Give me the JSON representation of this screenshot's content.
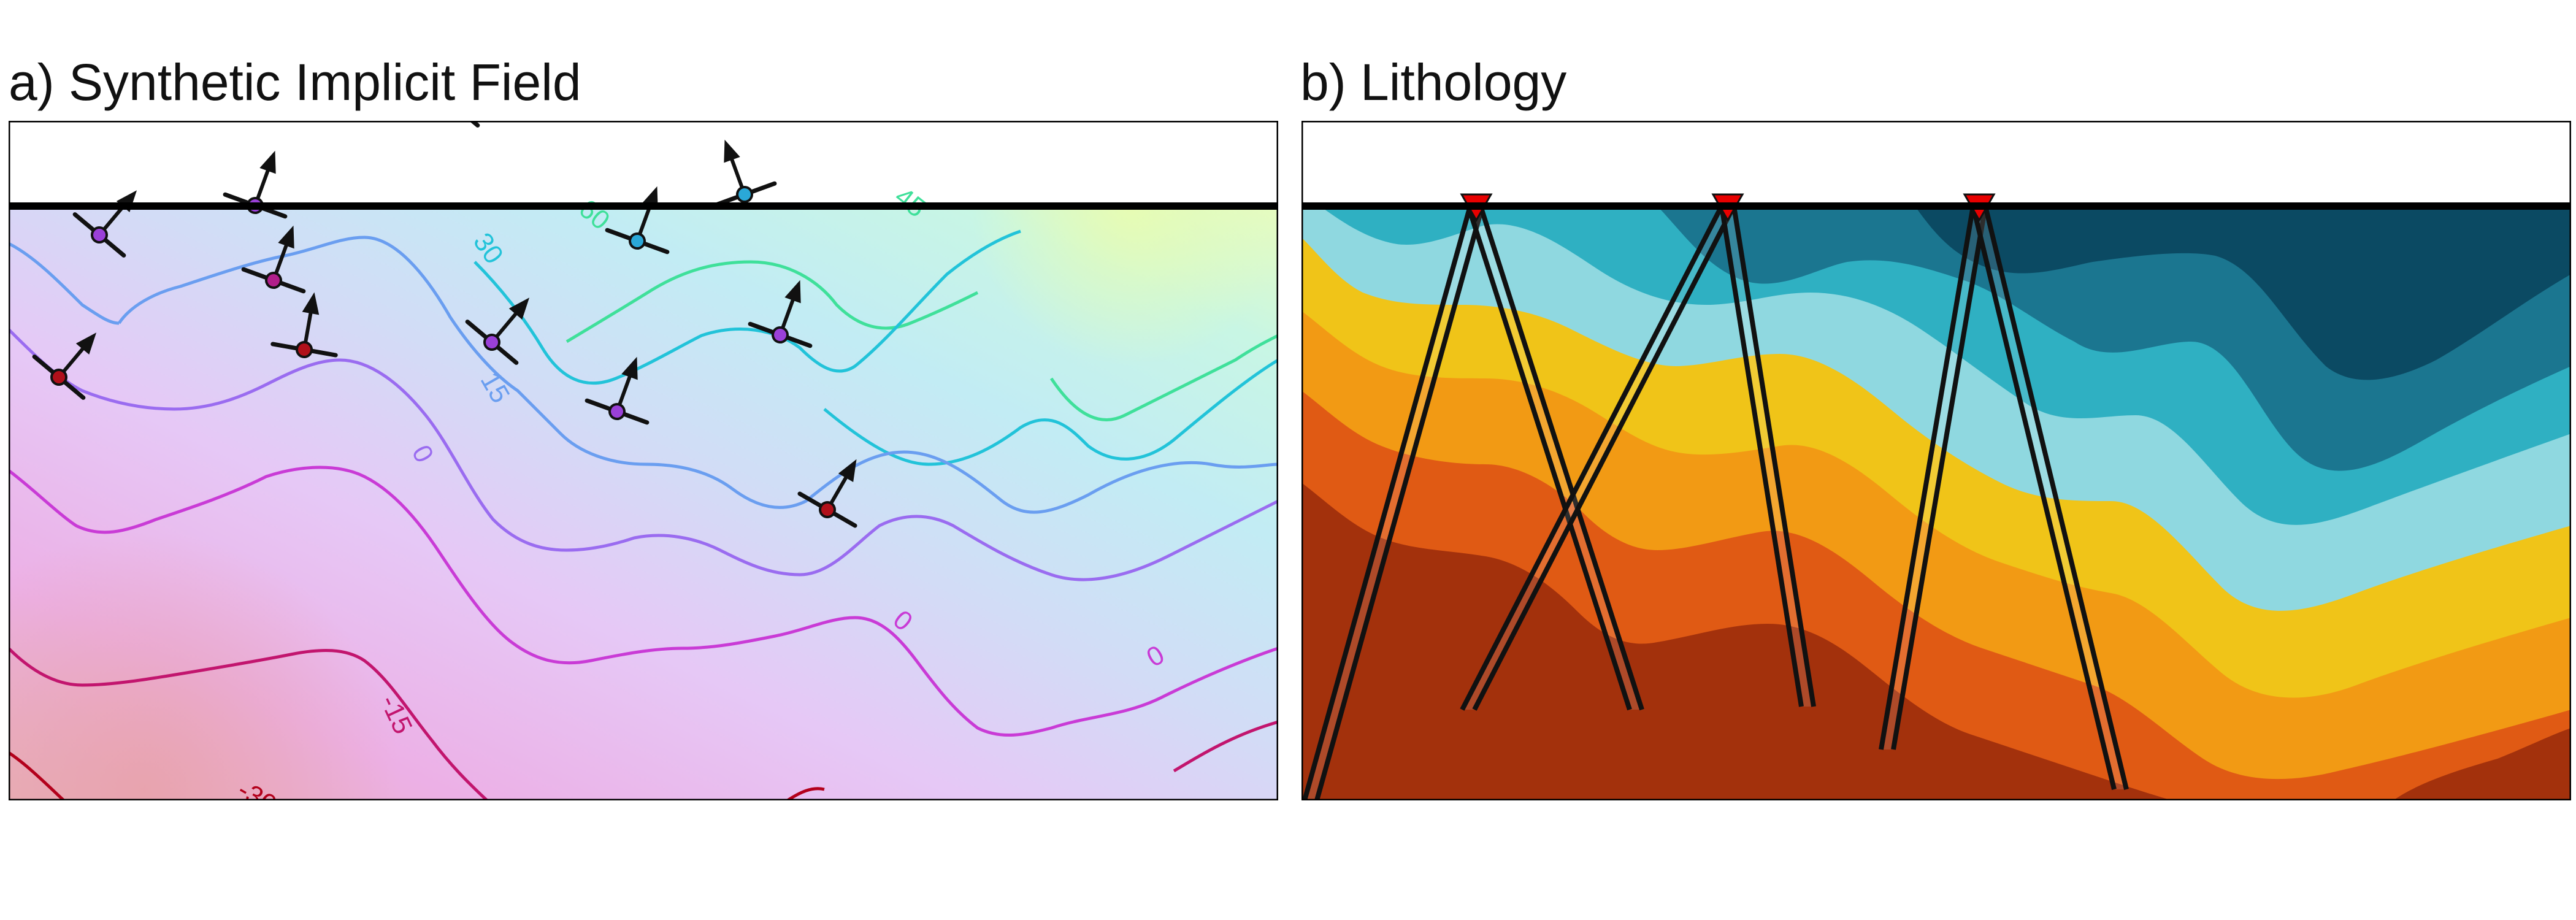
{
  "panels": {
    "a": {
      "title": "a) Synthetic Implicit Field",
      "contour_labels": [
        "-30",
        "-15",
        "0",
        "0",
        "15",
        "30",
        "45",
        "60",
        "60"
      ]
    },
    "b": {
      "title": "b) Lithology"
    }
  },
  "chart_data": [
    {
      "type": "contour",
      "title": "a) Synthetic Implicit Field",
      "colormap": [
        "#b3001b",
        "#c81d7a",
        "#c93bd6",
        "#9a6cf0",
        "#6a9ef0",
        "#22c3d9",
        "#3fe09a",
        "#c8f55a"
      ],
      "levels": [
        -30,
        -15,
        0,
        15,
        30,
        45,
        60
      ],
      "level_colors": {
        "-30": "#b3001b",
        "-15": "#c2156e",
        "0": "#c93bd6",
        "15": "#9a6cf0",
        "30": "#6a9ef0",
        "45": "#22c3d9",
        "60": "#3fe09a"
      },
      "observations": [
        {
          "value_color": "#2aa8d8",
          "gradient": "up"
        },
        {
          "value_color": "#2aa8d8",
          "gradient": "up"
        },
        {
          "value_color": "#2ad0a8",
          "gradient": "up-right"
        },
        {
          "value_color": "#6aa8f0",
          "gradient": "up-right"
        },
        {
          "value_color": "#2aa8d8",
          "gradient": "up-right"
        },
        {
          "value_color": "#a8f040",
          "gradient": "up"
        },
        {
          "value_color": "#a8f040",
          "gradient": "up"
        },
        {
          "value_color": "#2aa8d8",
          "gradient": "up"
        },
        {
          "value_color": "#2aa8d8",
          "gradient": "up"
        },
        {
          "value_color": "#9a40d8",
          "gradient": "up-right"
        },
        {
          "value_color": "#9a40d8",
          "gradient": "up"
        },
        {
          "value_color": "#b01e8a",
          "gradient": "up"
        },
        {
          "value_color": "#b0101a",
          "gradient": "up"
        },
        {
          "value_color": "#b0101a",
          "gradient": "up-right"
        },
        {
          "value_color": "#9a40d8",
          "gradient": "up-right"
        },
        {
          "value_color": "#9a40d8",
          "gradient": "up"
        },
        {
          "value_color": "#9a40d8",
          "gradient": "up"
        },
        {
          "value_color": "#b0101a",
          "gradient": "up-right"
        }
      ]
    },
    {
      "type": "heatmap",
      "title": "b) Lithology",
      "layer_colors": [
        "#0b4a63",
        "#1b7690",
        "#2fb0c2",
        "#8fd8e0",
        "#f0c418",
        "#f29a14",
        "#e05a14",
        "#a3310c"
      ],
      "faults": 5,
      "fault_markers": 3,
      "marker_color": "#e80000"
    }
  ]
}
